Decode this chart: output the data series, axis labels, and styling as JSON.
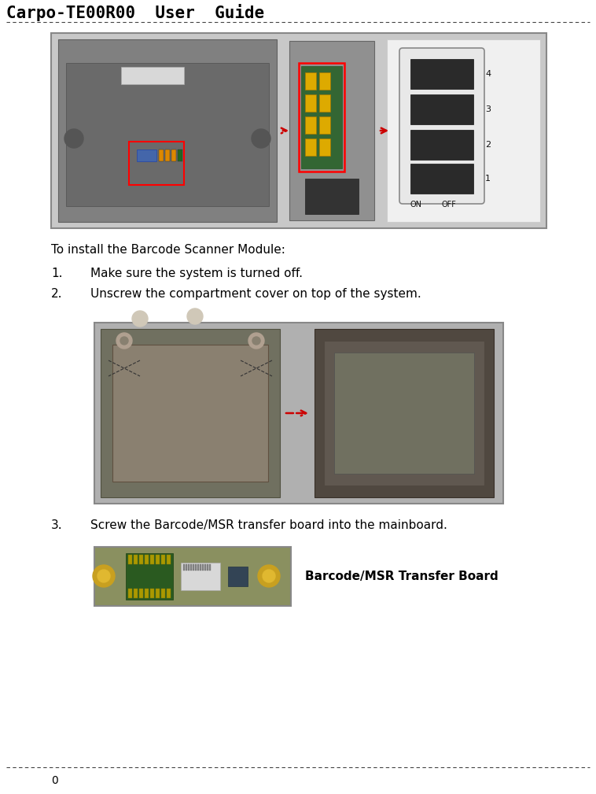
{
  "title": "Carpo-TE00R00  User  Guide",
  "title_fontsize": 15,
  "title_font": "monospace",
  "title_fontweight": "bold",
  "background_color": "#ffffff",
  "text_color": "#000000",
  "page_number": "0",
  "intro_text": "To install the Barcode Scanner Module:",
  "step1_num": "1.",
  "step1_text": "Make sure the system is turned off.",
  "step2_num": "2.",
  "step2_text": "Unscrew the compartment cover on top of the system.",
  "step3_num": "3.",
  "step3_text": "Screw the Barcode/MSR transfer board into the mainboard.",
  "caption": "Barcode/MSR Transfer Board",
  "font_size_body": 11,
  "font_size_caption": 11,
  "img1_border": "#888888",
  "img1_bg": "#c8c8c8",
  "img1_left_bg": "#808080",
  "img1_mid_bg": "#a0a0a0",
  "img1_right_bg": "#f0f0f0",
  "img2_border": "#888888",
  "img2_bg": "#b0b0b0",
  "img3_border": "#888888",
  "img3_bg": "#8a9060",
  "dip_color": "#2a2a2a",
  "arrow_color": "#cc0000",
  "line_color": "#444444"
}
